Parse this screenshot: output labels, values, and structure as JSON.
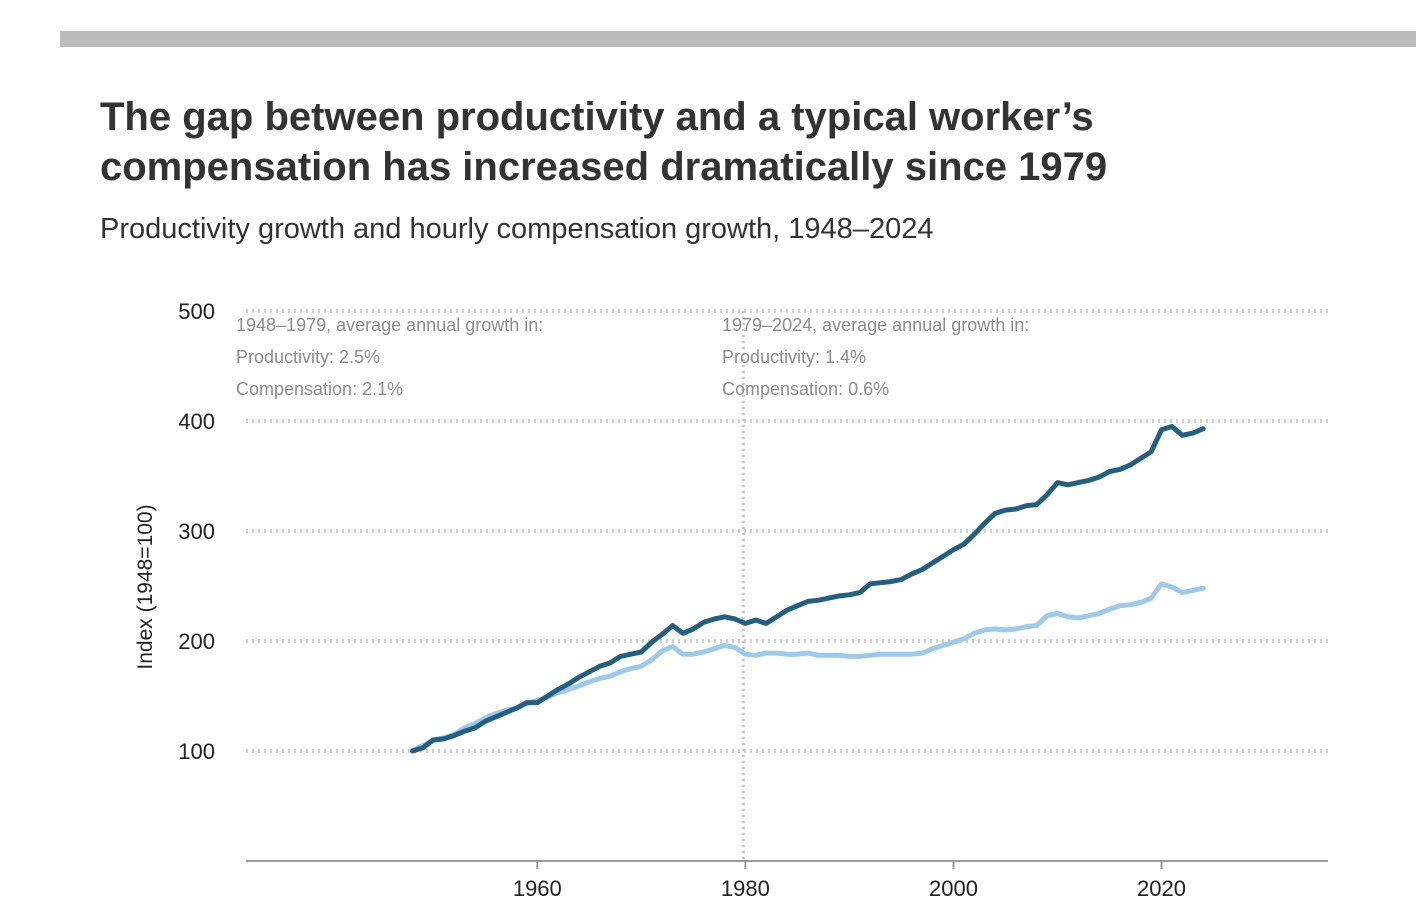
{
  "title": "The gap between productivity and a typical worker’s compensation has increased dramatically since 1979",
  "subtitle": "Productivity growth and hourly compensation growth, 1948–2024",
  "chart_data": {
    "type": "line",
    "ylabel": "Index (1948=100)",
    "xlabel": "",
    "xlim": [
      1932,
      2036
    ],
    "ylim": [
      0,
      500
    ],
    "yticks": [
      100,
      200,
      300,
      400,
      500
    ],
    "xticks": [
      1960,
      1980,
      2000,
      2020
    ],
    "grid": "horizontal dotted",
    "reference_line": {
      "x": 1979.8
    },
    "annotations": [
      {
        "lines": [
          "1948–1979, average annual growth in:",
          "Productivity: 2.5%",
          "Compensation: 2.1%"
        ]
      },
      {
        "lines": [
          "1979–2024, average annual growth in:",
          "Productivity: 1.4%",
          "Compensation: 0.6%"
        ]
      }
    ],
    "series": [
      {
        "color": "#245f80",
        "points": [
          [
            1948,
            100
          ],
          [
            1949,
            103
          ],
          [
            1950,
            110
          ],
          [
            1951,
            111
          ],
          [
            1952,
            114
          ],
          [
            1953,
            118
          ],
          [
            1954,
            121
          ],
          [
            1955,
            127
          ],
          [
            1956,
            131
          ],
          [
            1957,
            135
          ],
          [
            1958,
            139
          ],
          [
            1959,
            144
          ],
          [
            1960,
            144
          ],
          [
            1961,
            150
          ],
          [
            1962,
            156
          ],
          [
            1963,
            161
          ],
          [
            1964,
            167
          ],
          [
            1965,
            172
          ],
          [
            1966,
            177
          ],
          [
            1967,
            180
          ],
          [
            1968,
            186
          ],
          [
            1969,
            188
          ],
          [
            1970,
            190
          ],
          [
            1971,
            199
          ],
          [
            1972,
            206
          ],
          [
            1973,
            214
          ],
          [
            1974,
            207
          ],
          [
            1975,
            211
          ],
          [
            1976,
            217
          ],
          [
            1977,
            220
          ],
          [
            1978,
            222
          ],
          [
            1979,
            220
          ],
          [
            1980,
            216
          ],
          [
            1981,
            219
          ],
          [
            1982,
            216
          ],
          [
            1983,
            222
          ],
          [
            1984,
            228
          ],
          [
            1985,
            232
          ],
          [
            1986,
            236
          ],
          [
            1987,
            237
          ],
          [
            1988,
            239
          ],
          [
            1989,
            241
          ],
          [
            1990,
            242
          ],
          [
            1991,
            244
          ],
          [
            1992,
            252
          ],
          [
            1993,
            253
          ],
          [
            1994,
            254
          ],
          [
            1995,
            256
          ],
          [
            1996,
            261
          ],
          [
            1997,
            265
          ],
          [
            1998,
            271
          ],
          [
            1999,
            277
          ],
          [
            2000,
            283
          ],
          [
            2001,
            288
          ],
          [
            2002,
            297
          ],
          [
            2003,
            307
          ],
          [
            2004,
            316
          ],
          [
            2005,
            319
          ],
          [
            2006,
            320
          ],
          [
            2007,
            323
          ],
          [
            2008,
            324
          ],
          [
            2009,
            333
          ],
          [
            2010,
            344
          ],
          [
            2011,
            342
          ],
          [
            2012,
            344
          ],
          [
            2013,
            346
          ],
          [
            2014,
            349
          ],
          [
            2015,
            354
          ],
          [
            2016,
            356
          ],
          [
            2017,
            360
          ],
          [
            2018,
            366
          ],
          [
            2019,
            372
          ],
          [
            2020,
            392
          ],
          [
            2021,
            395
          ],
          [
            2022,
            387
          ],
          [
            2023,
            389
          ],
          [
            2024,
            393
          ]
        ]
      },
      {
        "color": "#9ec9e8",
        "points": [
          [
            1948,
            100
          ],
          [
            1949,
            105
          ],
          [
            1950,
            110
          ],
          [
            1951,
            112
          ],
          [
            1952,
            115
          ],
          [
            1953,
            121
          ],
          [
            1954,
            125
          ],
          [
            1955,
            130
          ],
          [
            1956,
            134
          ],
          [
            1957,
            137
          ],
          [
            1958,
            139
          ],
          [
            1959,
            143
          ],
          [
            1960,
            146
          ],
          [
            1961,
            149
          ],
          [
            1962,
            153
          ],
          [
            1963,
            156
          ],
          [
            1964,
            159
          ],
          [
            1965,
            163
          ],
          [
            1966,
            166
          ],
          [
            1967,
            168
          ],
          [
            1968,
            172
          ],
          [
            1969,
            175
          ],
          [
            1970,
            177
          ],
          [
            1971,
            183
          ],
          [
            1972,
            191
          ],
          [
            1973,
            195
          ],
          [
            1974,
            188
          ],
          [
            1975,
            188
          ],
          [
            1976,
            190
          ],
          [
            1977,
            193
          ],
          [
            1978,
            196
          ],
          [
            1979,
            194
          ],
          [
            1980,
            188
          ],
          [
            1981,
            187
          ],
          [
            1982,
            189
          ],
          [
            1983,
            189
          ],
          [
            1984,
            188
          ],
          [
            1985,
            188
          ],
          [
            1986,
            189
          ],
          [
            1987,
            187
          ],
          [
            1988,
            187
          ],
          [
            1989,
            187
          ],
          [
            1990,
            186
          ],
          [
            1991,
            186
          ],
          [
            1992,
            187
          ],
          [
            1993,
            188
          ],
          [
            1994,
            188
          ],
          [
            1995,
            188
          ],
          [
            1996,
            188
          ],
          [
            1997,
            189
          ],
          [
            1998,
            193
          ],
          [
            1999,
            196
          ],
          [
            2000,
            199
          ],
          [
            2001,
            202
          ],
          [
            2002,
            207
          ],
          [
            2003,
            210
          ],
          [
            2004,
            211
          ],
          [
            2005,
            210
          ],
          [
            2006,
            211
          ],
          [
            2007,
            213
          ],
          [
            2008,
            214
          ],
          [
            2009,
            223
          ],
          [
            2010,
            225
          ],
          [
            2011,
            222
          ],
          [
            2012,
            221
          ],
          [
            2013,
            223
          ],
          [
            2014,
            225
          ],
          [
            2015,
            229
          ],
          [
            2016,
            232
          ],
          [
            2017,
            233
          ],
          [
            2018,
            235
          ],
          [
            2019,
            239
          ],
          [
            2020,
            252
          ],
          [
            2021,
            249
          ],
          [
            2022,
            244
          ],
          [
            2023,
            246
          ],
          [
            2024,
            248
          ]
        ]
      }
    ]
  }
}
